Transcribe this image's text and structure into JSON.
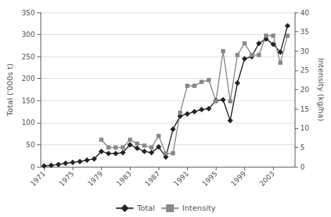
{
  "chart_data": {
    "type": "line",
    "x": [
      1971,
      1972,
      1973,
      1974,
      1975,
      1976,
      1977,
      1978,
      1979,
      1980,
      1981,
      1982,
      1983,
      1984,
      1985,
      1986,
      1987,
      1988,
      1989,
      1990,
      1991,
      1992,
      1993,
      1994,
      1995,
      1996,
      1997,
      1998,
      1999,
      2000,
      2001,
      2002,
      2003,
      2004,
      2005
    ],
    "series": [
      {
        "name": "Total",
        "color": "#222222",
        "marker": "diamond",
        "values": [
          2,
          3,
          5,
          8,
          10,
          12,
          15,
          18,
          35,
          30,
          30,
          32,
          50,
          42,
          35,
          32,
          45,
          22,
          85,
          115,
          120,
          125,
          130,
          132,
          150,
          152,
          105,
          190,
          245,
          250,
          280,
          290,
          278,
          260,
          320
        ]
      },
      {
        "name": "Intensity",
        "color": "#888888",
        "marker": "square",
        "axis": "y2",
        "values": [
          null,
          null,
          null,
          null,
          null,
          null,
          null,
          null,
          7,
          5,
          5,
          5,
          7,
          6,
          5.5,
          5,
          8,
          3.5,
          3.5,
          14,
          21,
          21,
          22,
          22.5,
          17,
          30,
          17,
          29,
          32,
          29,
          29,
          34,
          34,
          27,
          34
        ]
      }
    ],
    "xlim": [
      1970.5,
      2006
    ],
    "xticks": [
      1971,
      1975,
      1979,
      1983,
      1987,
      1991,
      1995,
      1999,
      2003
    ],
    "ylabel": "Total ('000s t)",
    "ylim": [
      0,
      350
    ],
    "yticks": [
      0,
      50,
      100,
      150,
      200,
      250,
      300,
      350
    ],
    "y2label": "Intensity (kg/ha)",
    "y2lim": [
      0,
      40
    ],
    "y2ticks": [
      0,
      5,
      10,
      15,
      20,
      25,
      30,
      35,
      40
    ],
    "grid": true,
    "legend": "bottom"
  }
}
